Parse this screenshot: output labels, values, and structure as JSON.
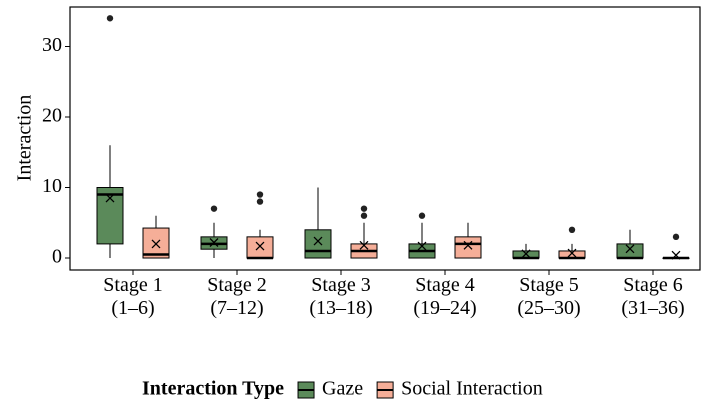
{
  "chart_data": {
    "type": "box",
    "y_label": "Interaction",
    "legend_title": "Interaction Type",
    "categories": [
      "Stage 1\n(1–6)",
      "Stage 2\n(7–12)",
      "Stage 3\n(13–18)",
      "Stage 4\n(19–24)",
      "Stage 5\n(25–30)",
      "Stage 6\n(31–36)"
    ],
    "ylim": [
      -1.7,
      35.6
    ],
    "yticks": [
      0,
      10,
      20,
      30
    ],
    "legend": "bottom",
    "series": [
      {
        "name": "Gaze",
        "color": "#5b8a5a",
        "values": [
          {
            "min": 0,
            "q1": 2,
            "median": 9,
            "q3": 10,
            "max": 16,
            "mean": 8.5,
            "outliers": [
              34
            ]
          },
          {
            "min": 0,
            "q1": 1.25,
            "median": 2,
            "q3": 3,
            "max": 5,
            "mean": 2.2,
            "outliers": [
              7
            ]
          },
          {
            "min": 0,
            "q1": 0,
            "median": 1,
            "q3": 4,
            "max": 10,
            "mean": 2.4,
            "outliers": []
          },
          {
            "min": 0,
            "q1": 0,
            "median": 1,
            "q3": 2,
            "max": 5,
            "mean": 1.7,
            "outliers": [
              6
            ]
          },
          {
            "min": 0,
            "q1": 0,
            "median": 0,
            "q3": 1,
            "max": 2,
            "mean": 0.6,
            "outliers": []
          },
          {
            "min": 0,
            "q1": 0,
            "median": 0,
            "q3": 2,
            "max": 4,
            "mean": 1.3,
            "outliers": []
          }
        ]
      },
      {
        "name": "Social Interaction",
        "color": "#f5ae98",
        "values": [
          {
            "min": 0,
            "q1": 0,
            "median": 0.5,
            "q3": 4.25,
            "max": 6,
            "mean": 2,
            "outliers": []
          },
          {
            "min": 0,
            "q1": 0,
            "median": 0,
            "q3": 3,
            "max": 4,
            "mean": 1.7,
            "outliers": [
              8,
              9
            ]
          },
          {
            "min": 0,
            "q1": 0,
            "median": 1,
            "q3": 2,
            "max": 5,
            "mean": 1.8,
            "outliers": [
              6,
              7
            ]
          },
          {
            "min": 0,
            "q1": 0,
            "median": 2,
            "q3": 3,
            "max": 5,
            "mean": 1.8,
            "outliers": []
          },
          {
            "min": 0,
            "q1": 0,
            "median": 0,
            "q3": 1,
            "max": 2,
            "mean": 0.7,
            "outliers": [
              4
            ]
          },
          {
            "min": 0,
            "q1": 0,
            "median": 0,
            "q3": 0,
            "max": 0,
            "mean": 0.4,
            "outliers": [
              3
            ]
          }
        ]
      }
    ]
  }
}
